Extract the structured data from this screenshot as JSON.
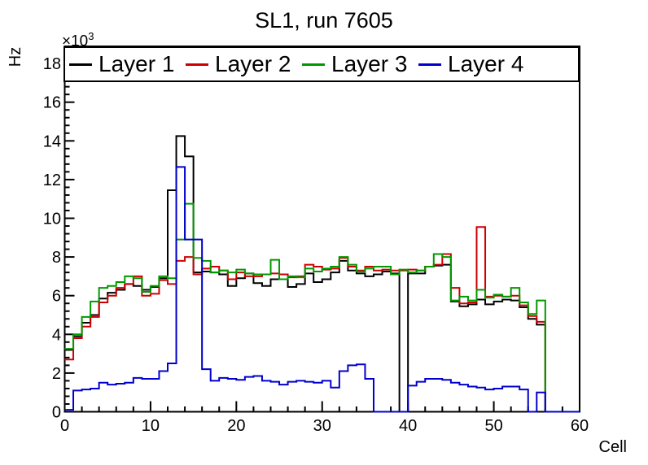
{
  "chart_data": {
    "type": "step-histogram",
    "title": "SL1, run 7605",
    "xlabel": "Cell",
    "ylabel": "Hz",
    "y_exponent_base": "×10",
    "y_exponent_power": "3",
    "x_range": [
      0,
      60
    ],
    "y_range": [
      0,
      18
    ],
    "x_major_ticks": [
      0,
      10,
      20,
      30,
      40,
      50,
      60
    ],
    "x_minor_step": 2,
    "y_major_ticks": [
      0,
      2,
      4,
      6,
      8,
      10,
      12,
      14,
      16,
      18
    ],
    "y_minor_step": 0.4,
    "grid": false,
    "legend_position": "top-inside-full-width",
    "bin_width": 1,
    "y_values_scale": "values in units of 10^3 Hz",
    "series": [
      {
        "name": "Layer 1",
        "color": "#000000",
        "values": [
          3.2,
          3.9,
          4.6,
          5.0,
          5.85,
          6.15,
          6.3,
          6.6,
          6.5,
          6.3,
          6.45,
          6.9,
          11.45,
          14.25,
          13.2,
          7.2,
          7.25,
          7.2,
          7.1,
          6.5,
          6.9,
          7.15,
          6.65,
          6.5,
          6.85,
          6.85,
          6.45,
          6.6,
          7.15,
          6.7,
          6.85,
          7.2,
          7.8,
          7.3,
          7.15,
          7.0,
          7.1,
          7.25,
          7.15,
          0,
          7.15,
          7.15,
          7.5,
          7.55,
          7.6,
          5.7,
          5.45,
          5.55,
          5.8,
          5.55,
          5.7,
          5.8,
          5.75,
          5.4,
          4.8,
          4.5,
          0,
          0,
          0,
          0
        ]
      },
      {
        "name": "Layer 2",
        "color": "#cc0000",
        "values": [
          2.7,
          3.8,
          4.4,
          4.9,
          5.65,
          6.0,
          6.4,
          6.6,
          7.0,
          6.0,
          6.1,
          6.8,
          6.6,
          7.8,
          8.0,
          7.1,
          7.4,
          7.5,
          7.3,
          6.85,
          7.2,
          7.0,
          7.0,
          7.1,
          7.15,
          7.1,
          6.95,
          7.0,
          7.6,
          7.5,
          7.35,
          7.4,
          7.95,
          7.5,
          7.3,
          7.5,
          7.3,
          7.35,
          7.3,
          7.3,
          7.35,
          7.3,
          7.5,
          7.6,
          8.15,
          6.4,
          5.6,
          5.65,
          9.55,
          5.95,
          6.0,
          5.95,
          6.0,
          5.5,
          4.95,
          4.65,
          0,
          0,
          0,
          0
        ]
      },
      {
        "name": "Layer 3",
        "color": "#009900",
        "values": [
          3.25,
          4.0,
          4.9,
          5.7,
          6.4,
          6.5,
          6.7,
          7.0,
          6.9,
          6.2,
          6.5,
          7.0,
          6.9,
          8.9,
          10.75,
          7.95,
          7.8,
          7.2,
          7.3,
          7.2,
          7.35,
          7.15,
          7.1,
          7.1,
          7.85,
          6.85,
          7.0,
          6.95,
          7.4,
          7.25,
          7.4,
          7.5,
          8.0,
          7.6,
          7.25,
          7.4,
          7.5,
          7.5,
          7.1,
          7.35,
          7.2,
          7.3,
          7.5,
          8.15,
          8.0,
          5.75,
          5.95,
          5.75,
          6.3,
          5.9,
          6.05,
          5.95,
          6.4,
          5.65,
          5.05,
          5.75,
          0,
          0,
          0,
          0
        ]
      },
      {
        "name": "Layer 4",
        "color": "#0000cc",
        "values": [
          0.1,
          1.1,
          1.15,
          1.2,
          1.5,
          1.4,
          1.45,
          1.5,
          1.75,
          1.7,
          1.7,
          2.1,
          2.5,
          12.65,
          8.9,
          8.9,
          2.2,
          1.6,
          1.75,
          1.7,
          1.65,
          1.8,
          1.85,
          1.6,
          1.55,
          1.4,
          1.55,
          1.6,
          1.55,
          1.5,
          1.6,
          1.25,
          2.1,
          2.4,
          2.45,
          1.7,
          0,
          0,
          0,
          0,
          1.35,
          1.55,
          1.7,
          1.7,
          1.65,
          1.5,
          1.4,
          1.3,
          1.25,
          1.15,
          1.2,
          1.3,
          1.3,
          1.15,
          0,
          1.0,
          0,
          0,
          0,
          0
        ]
      }
    ]
  },
  "legend": {
    "entries": [
      {
        "label": "Layer 1",
        "color": "#000000"
      },
      {
        "label": "Layer 2",
        "color": "#cc0000"
      },
      {
        "label": "Layer 3",
        "color": "#009900"
      },
      {
        "label": "Layer 4",
        "color": "#0000cc"
      }
    ]
  }
}
